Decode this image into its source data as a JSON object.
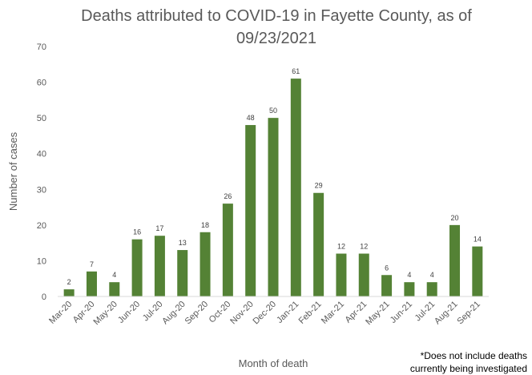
{
  "chart_data": {
    "type": "bar",
    "title_line1": "Deaths attributed to COVID-19 in Fayette County, as of",
    "title_line2": "09/23/2021",
    "xlabel": "Month of death",
    "ylabel": "Number of cases",
    "categories": [
      "Mar-20",
      "Apr-20",
      "May-20",
      "Jun-20",
      "Jul-20",
      "Aug-20",
      "Sep-20",
      "Oct-20",
      "Nov-20",
      "Dec-20",
      "Jan-21",
      "Feb-21",
      "Mar-21",
      "Apr-21",
      "May-21",
      "Jun-21",
      "Jul-21",
      "Aug-21",
      "Sep-21"
    ],
    "values": [
      2,
      7,
      4,
      16,
      17,
      13,
      18,
      26,
      48,
      50,
      61,
      29,
      12,
      12,
      6,
      4,
      4,
      20,
      14
    ],
    "ylim": [
      0,
      70
    ],
    "yticks": [
      0,
      10,
      20,
      30,
      40,
      50,
      60,
      70
    ],
    "grid": false,
    "bar_color": "#548235",
    "footnote_line1": "*Does not include deaths",
    "footnote_line2": "currently being investigated"
  }
}
